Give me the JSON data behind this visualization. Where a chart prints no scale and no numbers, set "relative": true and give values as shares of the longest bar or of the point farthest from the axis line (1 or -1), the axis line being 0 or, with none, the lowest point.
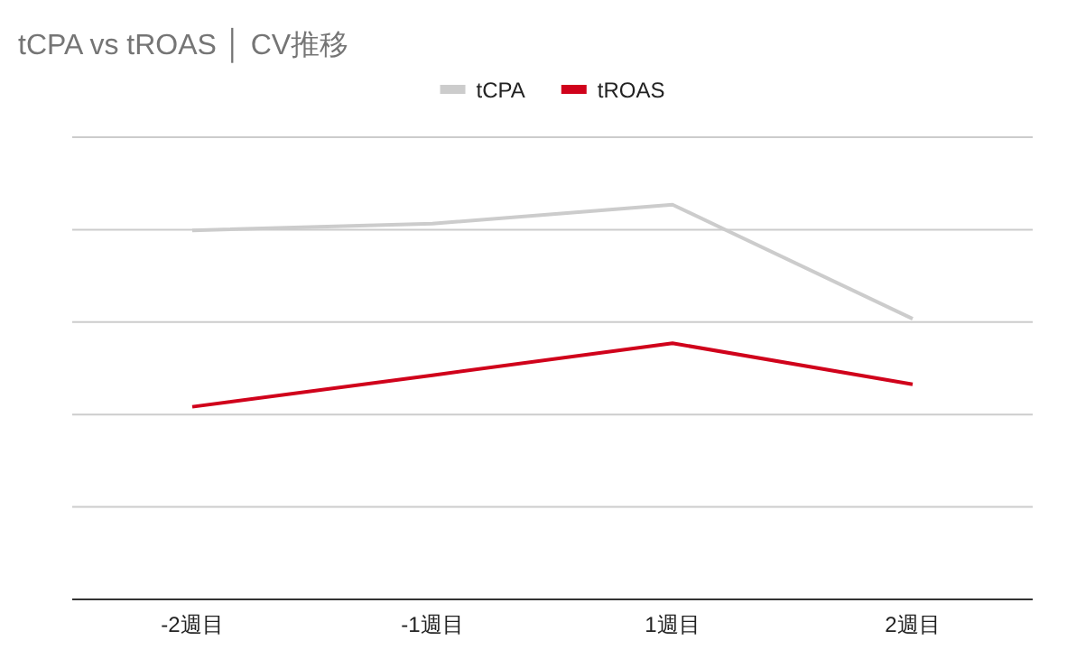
{
  "chart_data": {
    "type": "line",
    "title": "tCPA vs tROAS │ CV推移",
    "relative": true,
    "grid": true,
    "legend": "top",
    "categories": [
      "-2週目",
      "-1週目",
      "1週目",
      "2週目"
    ],
    "series": [
      {
        "name": "tCPA",
        "color": "#cccccc",
        "values": [
          0.935,
          0.952,
          1,
          0.711
        ]
      },
      {
        "name": "tROAS",
        "color": "#d0021b",
        "values": [
          0.488,
          0.568,
          0.649,
          0.545
        ]
      }
    ]
  }
}
